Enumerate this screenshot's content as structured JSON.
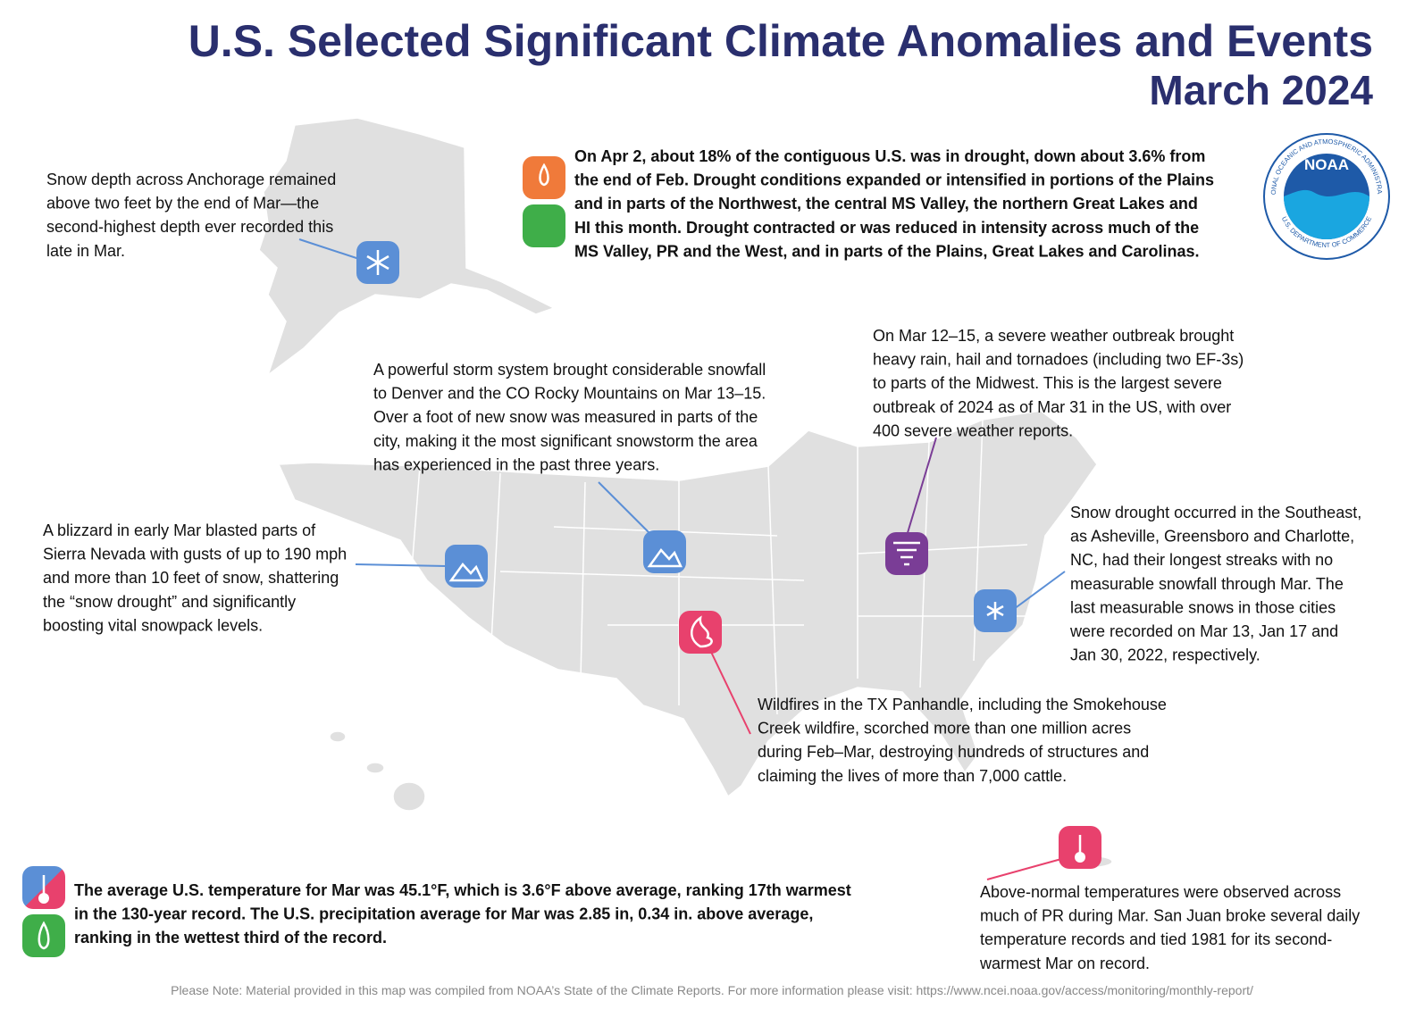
{
  "title": [
    "U.S. Selected Significant Climate Anomalies and Events",
    "March 2024"
  ],
  "logo": {
    "name": "NOAA",
    "ring_top": "NATIONAL OCEANIC AND ATMOSPHERIC ADMINISTRATION",
    "ring_bottom": "U.S. DEPARTMENT OF COMMERCE"
  },
  "annotations": {
    "alaska": [
      "Snow depth across Anchorage remained",
      "above two feet by the end of Mar—the",
      "second-highest depth ever recorded this",
      "late in Mar."
    ],
    "drought": [
      "On Apr 2, about 18% of the contiguous U.S. was in drought, down about 3.6% from",
      "the end of Feb. Drought conditions expanded or intensified in portions of the Plains",
      "and in parts of the Northwest, the central MS Valley, the northern Great Lakes and",
      "HI this month. Drought contracted or was reduced in intensity across much of the",
      "MS Valley, PR and the West, and in parts of the Plains, Great Lakes and Carolinas."
    ],
    "midwest": [
      "On Mar 12–15, a severe weather outbreak brought",
      "heavy rain, hail and tornadoes (including two EF-3s)",
      "to parts of the Midwest. This is the largest severe",
      "outbreak of 2024 as of Mar 31 in the US, with over",
      "400 severe weather reports."
    ],
    "denver": [
      "A powerful storm system brought considerable snowfall",
      "to Denver and the CO Rocky Mountains on Mar 13–15.",
      "Over a foot of new snow was measured in parts of the",
      "city, making it the most significant snowstorm the area",
      "has experienced in the past three years."
    ],
    "sierra": [
      "A blizzard in early Mar blasted parts of",
      "Sierra Nevada with gusts of up to 190 mph",
      "and more than 10 feet of snow, shattering",
      "the “snow drought” and significantly",
      "boosting vital snowpack levels."
    ],
    "southeast": [
      "Snow drought occurred in the Southeast,",
      "as Asheville, Greensboro and Charlotte,",
      "NC, had their longest streaks with no",
      "measurable snowfall through Mar. The",
      "last measurable snows in those cities",
      "were recorded on Mar 13, Jan 17 and",
      "Jan 30, 2022, respectively."
    ],
    "texas": [
      "Wildfires in the TX Panhandle, including the Smokehouse",
      "Creek wildfire, scorched more than one million acres",
      "during Feb–Mar, destroying hundreds of structures and",
      "claiming the lives of more than 7,000 cattle."
    ],
    "national": [
      "The average U.S. temperature for Mar was 45.1°F, which is 3.6°F above average, ranking 17th warmest",
      "in the 130-year record. The U.S. precipitation average for Mar was 2.85 in, 0.34 in. above average,",
      "ranking in the wettest third of the record."
    ],
    "puerto_rico": [
      "Above-normal temperatures were observed across",
      "much of PR during Mar. San Juan broke several daily",
      "temperature records and tied 1981 for its second-",
      "warmest Mar on record."
    ]
  },
  "note": "Please Note: Material provided in this map was compiled from NOAA’s State of the Climate Reports. For more information please visit: https://www.ncei.noaa.gov/access/monitoring/monthly-report/"
}
